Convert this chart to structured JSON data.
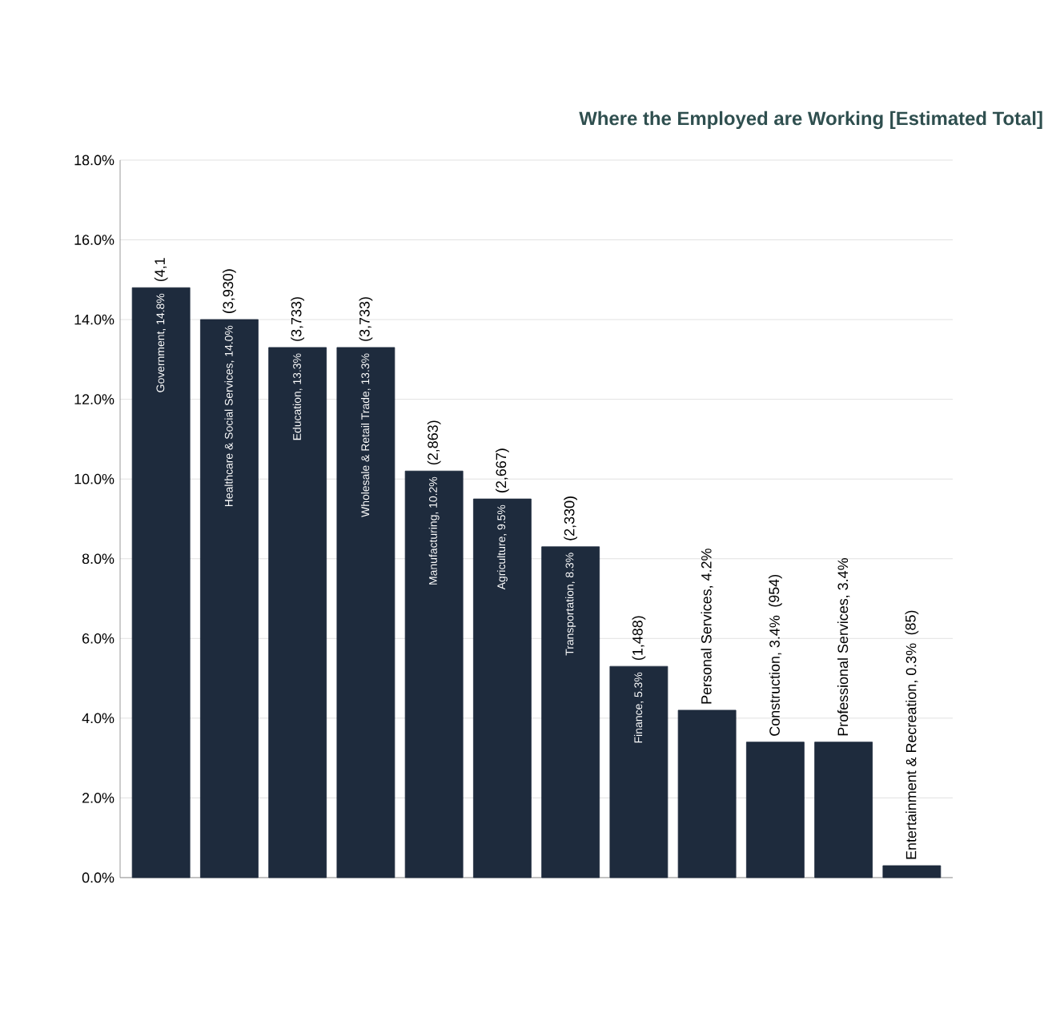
{
  "chart_data": {
    "type": "bar",
    "title": "Where the Employed are Working [Estimated Total]",
    "categories": [
      "Government, 14.8%",
      "Healthcare & Social Services, 14.0%",
      "Education, 13.3%",
      "Wholesale & Retail Trade, 13.3%",
      "Manufacturing, 10.2%",
      "Agriculture, 9.5%",
      "Transportation, 8.3%",
      "Finance, 5.3%",
      "Personal Services, 4.2%",
      "Construction, 3.4%",
      "Professional Services, 3.4%",
      "Entertainment & Recreation, 0.3%"
    ],
    "values": [
      14.8,
      14.0,
      13.3,
      13.3,
      10.2,
      9.5,
      8.3,
      5.3,
      4.2,
      3.4,
      3.4,
      0.3
    ],
    "annotations": [
      {
        "text": "(4,1",
        "x": "Government, 14.8%",
        "y": 14.8
      },
      {
        "text": "(3,930)",
        "x": "Healthcare & Social Services, 14.0%",
        "y": 14.0
      },
      {
        "text": "(3,733)",
        "x": "Education, 13.3%",
        "y": 13.3
      },
      {
        "text": "(3,733)",
        "x": "Wholesale & Retail Trade, 13.3%",
        "y": 13.3
      },
      {
        "text": "(2,863)",
        "x": "Manufacturing, 10.2%",
        "y": 10.2
      },
      {
        "text": "(2,667)",
        "x": "Agriculture, 9.5%",
        "y": 9.5
      },
      {
        "text": "(2,330)",
        "x": "Transportation, 8.3%",
        "y": 8.3
      },
      {
        "text": "(1,488)",
        "x": "Finance, 5.3%",
        "y": 5.3
      },
      "(954)",
      "(85)"
    ],
    "color": "#1e2b3d",
    "ylim": [
      0,
      18
    ],
    "yticks": [
      {
        "value": 0,
        "label": "0.0%"
      },
      {
        "value": 2,
        "label": "2.0%"
      },
      {
        "value": 4,
        "label": "4.0%"
      },
      {
        "value": 6,
        "label": "6.0%"
      },
      {
        "value": 8,
        "label": "8.0%"
      },
      {
        "value": 10,
        "label": "10.0%"
      },
      {
        "value": 12,
        "label": "12.0%"
      },
      {
        "value": 14,
        "label": "14.0%"
      },
      {
        "value": 16,
        "label": "16.0%"
      },
      {
        "value": 18,
        "label": "18.0%"
      }
    ],
    "grid": "y"
  }
}
